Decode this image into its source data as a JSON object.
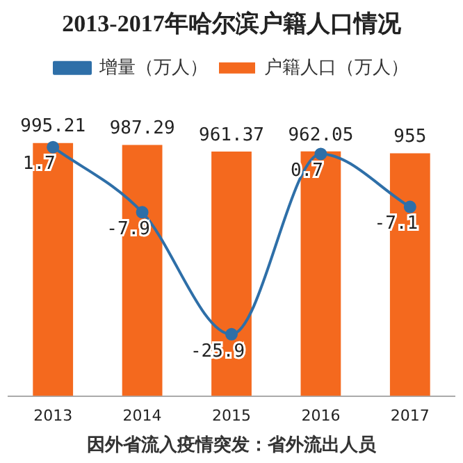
{
  "chart_data": {
    "type": "bar",
    "title": "2013-2017年哈尔滨户籍人口情况",
    "categories": [
      "2013",
      "2014",
      "2015",
      "2016",
      "2017"
    ],
    "series": [
      {
        "name": "户籍人口（万人）",
        "color": "#f4691e",
        "values": [
          995.21,
          987.29,
          961.37,
          962.05,
          955
        ]
      },
      {
        "name": "增量（万人）",
        "type": "line",
        "axis": "y2",
        "color": "#2e6fa8",
        "values": [
          1.7,
          -7.9,
          -25.9,
          0.7,
          -7.1
        ]
      }
    ],
    "tick_labels": "x",
    "data_labels": true,
    "legend": "top",
    "marker": "circle",
    "grid": false,
    "annotations": [
      "因外省流入疫情突发：省外流出人员"
    ]
  }
}
